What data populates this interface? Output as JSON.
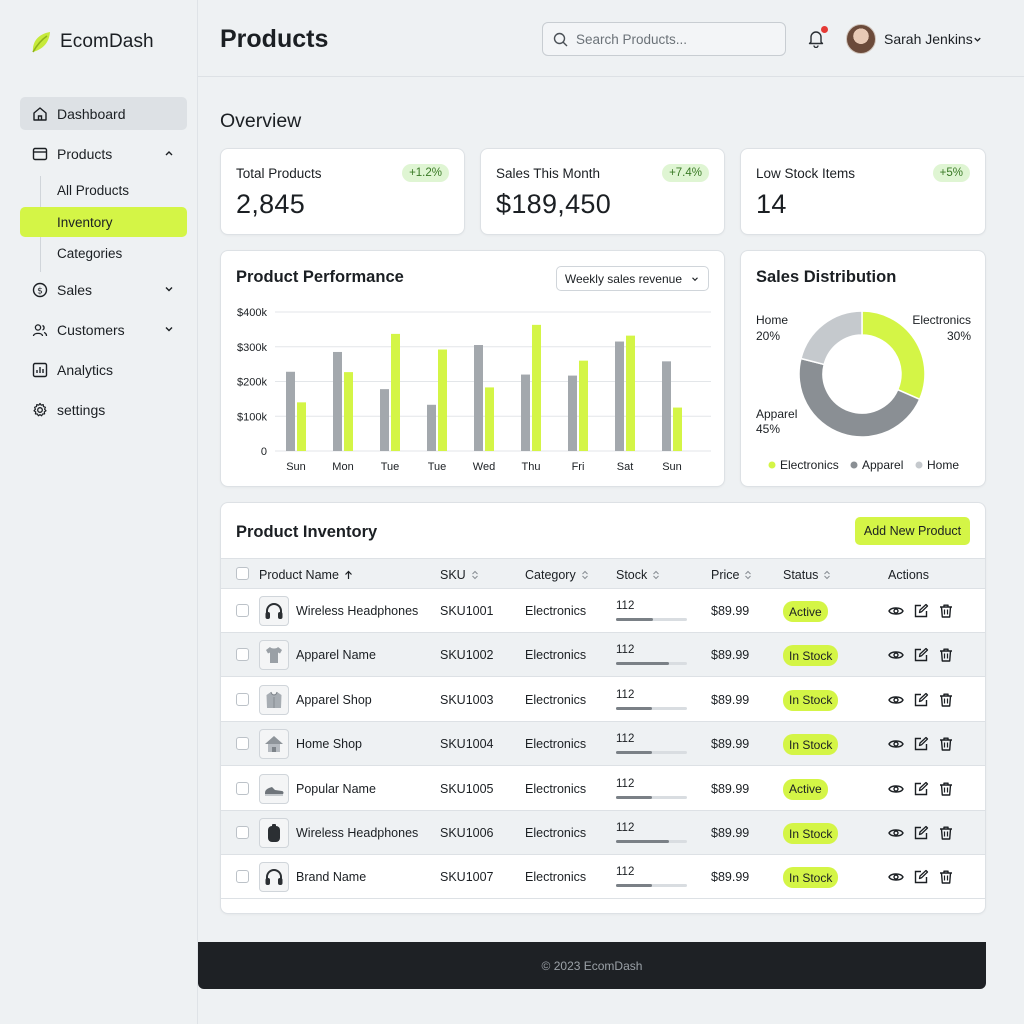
{
  "brand": {
    "name": "EcomDash"
  },
  "sidebar": {
    "items": [
      {
        "label": "Dashboard",
        "icon": "home-icon"
      },
      {
        "label": "Products",
        "icon": "box-icon"
      },
      {
        "label": "Sales",
        "icon": "dollar-icon"
      },
      {
        "label": "Customers",
        "icon": "users-icon"
      },
      {
        "label": "Analytics",
        "icon": "chart-icon"
      },
      {
        "label": "settings",
        "icon": "gear-icon"
      }
    ],
    "sub_items": [
      "All Products",
      "Inventory",
      "Categories"
    ],
    "active_sub": "Inventory"
  },
  "header": {
    "title": "Products",
    "search_placeholder": "Search Products...",
    "user_name": "Sarah Jenkins"
  },
  "overview": {
    "title": "Overview",
    "stats": [
      {
        "label": "Total Products",
        "value": "2,845",
        "change": "+1.2%"
      },
      {
        "label": "Sales This Month",
        "value": "$189,450",
        "change": "+7.4%"
      },
      {
        "label": "Low Stock Items",
        "value": "14",
        "change": "+5%"
      }
    ]
  },
  "performance": {
    "title": "Product Performance",
    "dropdown_value": "Weekly sales revenue"
  },
  "distribution": {
    "title": "Sales Distribution"
  },
  "chart_data": [
    {
      "type": "bar",
      "title": "Product Performance",
      "categories": [
        "Sun",
        "Mon",
        "Tue",
        "Tue",
        "Wed",
        "Thu",
        "Fri",
        "Sat",
        "Sun"
      ],
      "y_ticks": [
        "$400k",
        "$300k",
        "$200k",
        "$100k",
        "0"
      ],
      "ylim": [
        0,
        400000
      ],
      "series": [
        {
          "color": "#a3a8ad",
          "values": [
            228000,
            285000,
            178000,
            133000,
            305000,
            220000,
            217000,
            315000,
            258000
          ]
        },
        {
          "color": "#d4f546",
          "values": [
            140000,
            227000,
            337000,
            292000,
            183000,
            363000,
            260000,
            332000,
            125000
          ]
        }
      ]
    },
    {
      "type": "pie",
      "title": "Sales Distribution",
      "slices": [
        {
          "name": "Electronics",
          "value": 30,
          "label": "Electronics",
          "pct": "30%",
          "color": "#d4f546"
        },
        {
          "name": "Apparel",
          "value": 45,
          "label": "Apparel",
          "pct": "45%",
          "color": "#8a8f94"
        },
        {
          "name": "Home",
          "value": 20,
          "label": "Home",
          "pct": "20%",
          "color": "#c5c9cd"
        }
      ],
      "legend": [
        "Electronics",
        "Apparel",
        "Home"
      ],
      "legend_placement": "bottom"
    }
  ],
  "inventory": {
    "title": "Product Inventory",
    "add_label": "Add New Product",
    "columns": [
      "Product Name",
      "SKU",
      "Category",
      "Stock",
      "Price",
      "Status",
      "Actions"
    ],
    "rows": [
      {
        "name": "Wireless Headphones",
        "sku": "SKU1001",
        "category": "Electronics",
        "stock": "112",
        "stock_level": 0.52,
        "price": "$89.99",
        "status": "Active",
        "thumb": "headphones-icon"
      },
      {
        "name": "Apparel Name",
        "sku": "SKU1002",
        "category": "Electronics",
        "stock": "112",
        "stock_level": 0.75,
        "price": "$89.99",
        "status": "In Stock",
        "thumb": "tshirt-icon"
      },
      {
        "name": "Apparel Shop",
        "sku": "SKU1003",
        "category": "Electronics",
        "stock": "112",
        "stock_level": 0.5,
        "price": "$89.99",
        "status": "In Stock",
        "thumb": "hoodie-icon"
      },
      {
        "name": "Home Shop",
        "sku": "SKU1004",
        "category": "Electronics",
        "stock": "112",
        "stock_level": 0.5,
        "price": "$89.99",
        "status": "In Stock",
        "thumb": "house-icon"
      },
      {
        "name": "Popular Name",
        "sku": "SKU1005",
        "category": "Electronics",
        "stock": "112",
        "stock_level": 0.5,
        "price": "$89.99",
        "status": "Active",
        "thumb": "sneaker-icon"
      },
      {
        "name": "Wireless Headphones",
        "sku": "SKU1006",
        "category": "Electronics",
        "stock": "112",
        "stock_level": 0.75,
        "price": "$89.99",
        "status": "In Stock",
        "thumb": "speaker-icon"
      },
      {
        "name": "Brand Name",
        "sku": "SKU1007",
        "category": "Electronics",
        "stock": "112",
        "stock_level": 0.5,
        "price": "$89.99",
        "status": "In Stock",
        "thumb": "headphones-icon"
      }
    ]
  },
  "footer": {
    "text": "© 2023 EcomDash"
  }
}
